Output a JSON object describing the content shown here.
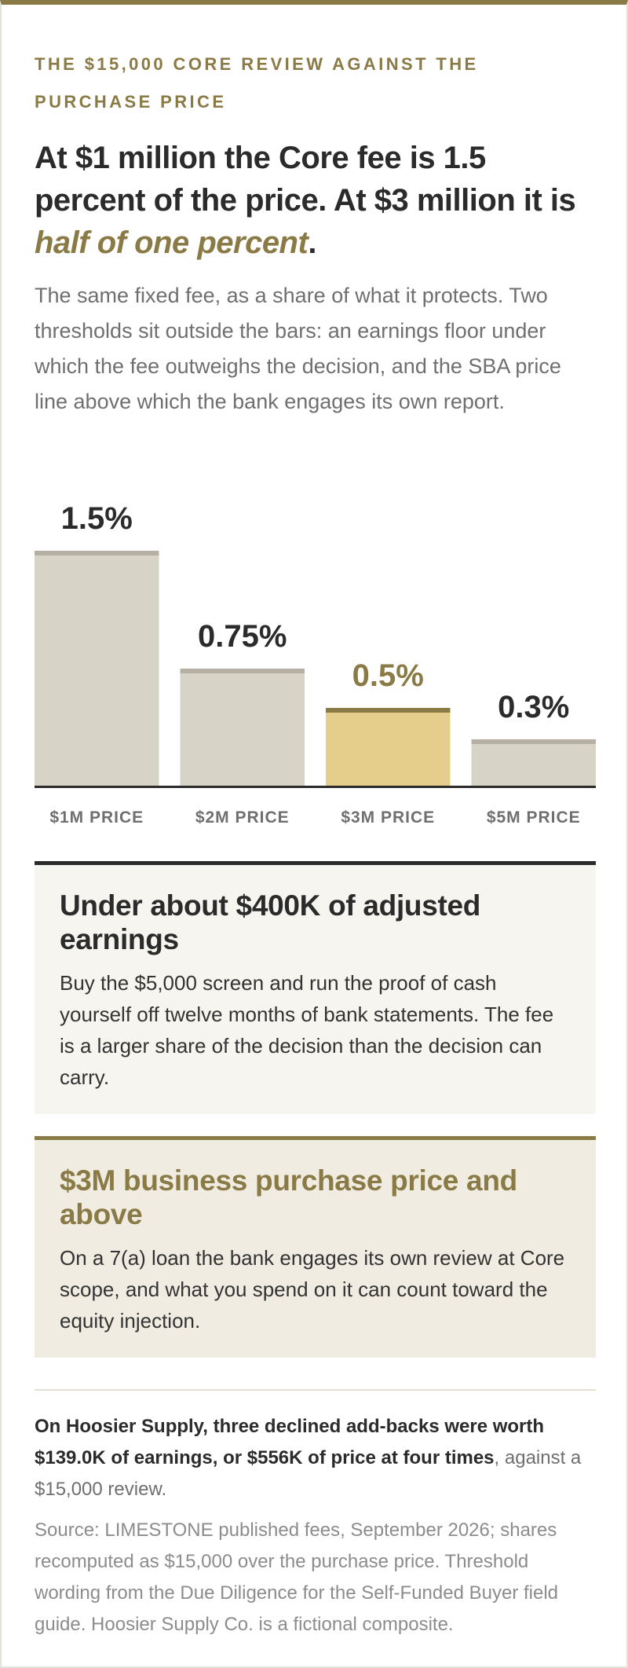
{
  "eyebrow": "THE $15,000 CORE REVIEW AGAINST THE PURCHASE PRICE",
  "headline": {
    "part1": "At $1 million the Core fee is 1.5 percent of the price. At $3 million it is ",
    "accent": "half of one percent",
    "end": "."
  },
  "dek": "The same fixed fee, as a share of what it protects. Two thresholds sit outside the bars: an earnings floor under which the fee outweighs the decision, and the SBA price line above which the bank engages its own report.",
  "chart_data": {
    "type": "bar",
    "title": "",
    "xlabel": "",
    "ylabel": "",
    "ylim": [
      0,
      1.5
    ],
    "grid": false,
    "categories": [
      "$1M PRICE",
      "$2M PRICE",
      "$3M PRICE",
      "$5M PRICE"
    ],
    "values": [
      1.5,
      0.75,
      0.5,
      0.3
    ],
    "data_labels": [
      "1.5%",
      "0.75%",
      "0.5%",
      "0.3%"
    ],
    "highlight_index": 2,
    "colors": {
      "bar": "#d8d3c7",
      "bar_cap": "#b5b0a3",
      "highlight_bar": "#e5cd8c",
      "highlight_cap": "#8a7a45",
      "label": "#2b2b2b",
      "highlight_label": "#8a7a45",
      "axis": "#2b2b2b",
      "tick_label": "#6f6f6f"
    }
  },
  "callouts": [
    {
      "title": "Under about $400K of adjusted earnings",
      "body": "Buy the $5,000 screen and run the proof of cash yourself off twelve months of bank statements. The fee is a larger share of the decision than the decision can carry."
    },
    {
      "title": "$3M business purchase price and above",
      "body": "On a 7(a) loan the bank engages its own review at Core scope, and what you spend on it can count toward the equity injection."
    }
  ],
  "note": {
    "strong": "On Hoosier Supply, three declined add-backs were worth $139.0K of earnings, or $556K of price at four times",
    "rest": ", against a $15,000 review."
  },
  "source": "Source: LIMESTONE published fees, September 2026; shares recomputed as $15,000 over the purchase price. Threshold wording from the Due Diligence for the Self-Funded Buyer field guide. Hoosier Supply Co. is a fictional composite.",
  "colors": {
    "accent": "#8a7a45",
    "text": "#2b2b2b",
    "muted": "#6f6f6f"
  }
}
